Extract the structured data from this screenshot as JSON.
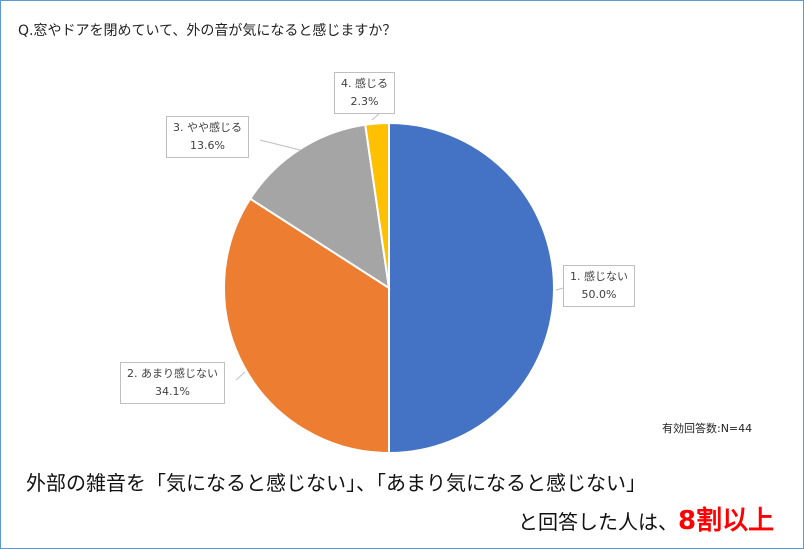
{
  "chart_data": {
    "type": "pie",
    "title": "Q.窓やドアを閉めていて、外の音が気になると感じますか？",
    "categories": [
      "1. 感じない",
      "2. あまり感じない",
      "3. やや感じる",
      "4. 感じる"
    ],
    "values": [
      50.0,
      34.1,
      13.6,
      2.3
    ],
    "value_labels": [
      "50.0%",
      "34.1%",
      "13.6%",
      "2.3%"
    ],
    "colors": [
      "#4472c4",
      "#ed7d31",
      "#a5a5a5",
      "#ffc000"
    ],
    "start": "top",
    "direction": "clockwise"
  },
  "note": "有効回答数:N=44",
  "caption": {
    "line1": "外部の雑音を「気になると感じない」、「あまり気になると感じない」",
    "line2": "と回答した人は、",
    "highlight": "8割以上"
  }
}
